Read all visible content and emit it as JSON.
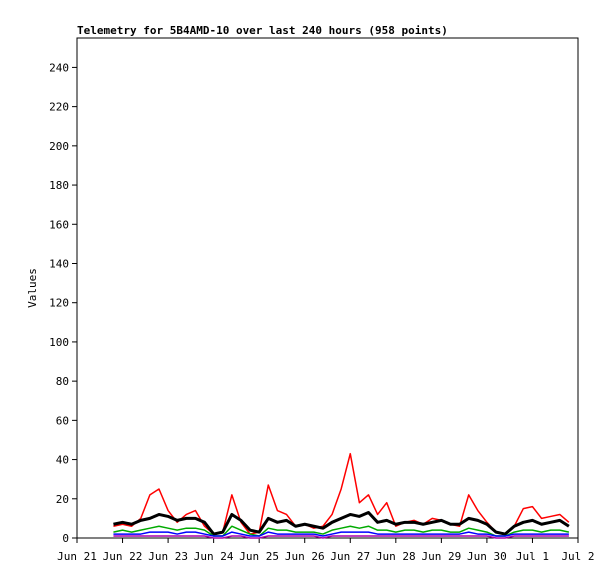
{
  "chart_data": {
    "type": "line",
    "title": "Telemetry for 5B4AMD-10 over last 240 hours (958 points)",
    "ylabel": "Values",
    "x": [
      0.8,
      1.0,
      1.2,
      1.4,
      1.6,
      1.8,
      2.0,
      2.2,
      2.4,
      2.6,
      2.8,
      3.0,
      3.2,
      3.4,
      3.6,
      3.8,
      4.0,
      4.2,
      4.4,
      4.6,
      4.8,
      5.0,
      5.2,
      5.4,
      5.6,
      5.8,
      6.0,
      6.2,
      6.4,
      6.6,
      6.8,
      7.0,
      7.2,
      7.4,
      7.6,
      7.8,
      8.0,
      8.2,
      8.4,
      8.6,
      8.8,
      9.0,
      9.2,
      9.4,
      9.6,
      9.8,
      10.0,
      10.2,
      10.4,
      10.6,
      10.8
    ],
    "series": [
      {
        "color": "#ff0000",
        "values": [
          6,
          7,
          6,
          10,
          22,
          25,
          14,
          8,
          12,
          14,
          6,
          2,
          3,
          22,
          8,
          2,
          3,
          27,
          14,
          12,
          6,
          7,
          5,
          6,
          12,
          25,
          43,
          18,
          22,
          12,
          18,
          6,
          8,
          9,
          7,
          10,
          9,
          7,
          6,
          22,
          14,
          8,
          3,
          2,
          6,
          15,
          16,
          10,
          11,
          12,
          8
        ]
      },
      {
        "color": "#000000",
        "values": [
          7,
          8,
          7,
          9,
          10,
          12,
          11,
          9,
          10,
          10,
          8,
          2,
          3,
          12,
          9,
          4,
          3,
          10,
          8,
          9,
          6,
          7,
          6,
          5,
          8,
          10,
          12,
          11,
          13,
          8,
          9,
          7,
          8,
          8,
          7,
          8,
          9,
          7,
          7,
          10,
          9,
          7,
          3,
          2,
          6,
          8,
          9,
          7,
          8,
          9,
          6
        ]
      },
      {
        "color": "#00aa00",
        "values": [
          3,
          4,
          3,
          4,
          5,
          6,
          5,
          4,
          5,
          5,
          4,
          1,
          1,
          6,
          4,
          2,
          1,
          5,
          4,
          4,
          3,
          3,
          3,
          2,
          4,
          5,
          6,
          5,
          6,
          4,
          4,
          3,
          4,
          4,
          3,
          4,
          4,
          3,
          3,
          5,
          4,
          3,
          1,
          1,
          3,
          4,
          4,
          3,
          4,
          4,
          3
        ]
      },
      {
        "color": "#0000ff",
        "values": [
          2,
          2,
          2,
          2,
          3,
          3,
          3,
          2,
          3,
          3,
          2,
          1,
          1,
          3,
          2,
          1,
          1,
          3,
          2,
          2,
          2,
          2,
          2,
          1,
          2,
          3,
          3,
          3,
          3,
          2,
          2,
          2,
          2,
          2,
          2,
          2,
          2,
          2,
          2,
          3,
          2,
          2,
          1,
          1,
          2,
          2,
          2,
          2,
          2,
          2,
          2
        ]
      },
      {
        "color": "#aa00aa",
        "values": [
          1,
          1,
          1,
          1,
          1,
          1,
          1,
          1,
          1,
          1,
          1,
          0,
          0,
          1,
          1,
          0,
          0,
          1,
          1,
          1,
          1,
          1,
          1,
          0,
          1,
          1,
          1,
          1,
          1,
          1,
          1,
          1,
          1,
          1,
          1,
          1,
          1,
          1,
          1,
          1,
          1,
          1,
          0,
          0,
          1,
          1,
          1,
          1,
          1,
          1,
          1
        ]
      }
    ],
    "xlim": [
      0,
      11
    ],
    "xticks": [
      {
        "value": 0,
        "label": "Jun 21"
      },
      {
        "value": 1,
        "label": "Jun 22"
      },
      {
        "value": 2,
        "label": "Jun 23"
      },
      {
        "value": 3,
        "label": "Jun 24"
      },
      {
        "value": 4,
        "label": "Jun 25"
      },
      {
        "value": 5,
        "label": "Jun 26"
      },
      {
        "value": 6,
        "label": "Jun 27"
      },
      {
        "value": 7,
        "label": "Jun 28"
      },
      {
        "value": 8,
        "label": "Jun 29"
      },
      {
        "value": 9,
        "label": "Jun 30"
      },
      {
        "value": 10,
        "label": "Jul 1"
      },
      {
        "value": 11,
        "label": "Jul 2"
      }
    ],
    "ylim": [
      0,
      255
    ],
    "yticks": [
      0,
      20,
      40,
      60,
      80,
      100,
      120,
      140,
      160,
      180,
      200,
      220,
      240
    ],
    "grid": false
  }
}
